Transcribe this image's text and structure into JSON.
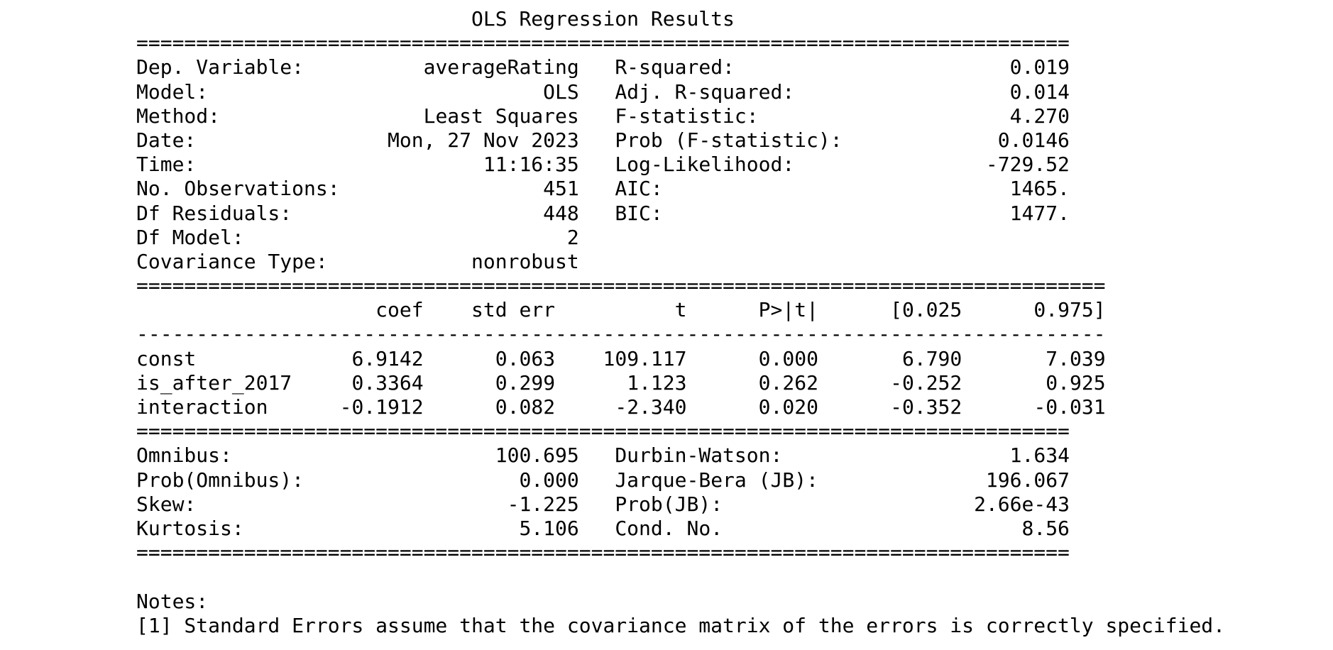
{
  "title": "OLS Regression Results",
  "separators": {
    "top": "==============================================================================",
    "coef_top": "=================================================================================",
    "coef_mid": "---------------------------------------------------------------------------------",
    "coef_bottom": "==============================================================================",
    "end": "=============================================================================="
  },
  "summary": {
    "left": [
      {
        "label": "Dep. Variable:",
        "value": "averageRating"
      },
      {
        "label": "Model:",
        "value": "OLS"
      },
      {
        "label": "Method:",
        "value": "Least Squares"
      },
      {
        "label": "Date:",
        "value": "Mon, 27 Nov 2023"
      },
      {
        "label": "Time:",
        "value": "11:16:35"
      },
      {
        "label": "No. Observations:",
        "value": "451"
      },
      {
        "label": "Df Residuals:",
        "value": "448"
      },
      {
        "label": "Df Model:",
        "value": "2"
      },
      {
        "label": "Covariance Type:",
        "value": "nonrobust"
      }
    ],
    "right": [
      {
        "label": "R-squared:",
        "value": "0.019"
      },
      {
        "label": "Adj. R-squared:",
        "value": "0.014"
      },
      {
        "label": "F-statistic:",
        "value": "4.270"
      },
      {
        "label": "Prob (F-statistic):",
        "value": "0.0146"
      },
      {
        "label": "Log-Likelihood:",
        "value": "-729.52"
      },
      {
        "label": "AIC:",
        "value": "1465."
      },
      {
        "label": "BIC:",
        "value": "1477."
      }
    ]
  },
  "coefficients": {
    "headers": [
      "coef",
      "std err",
      "t",
      "P>|t|",
      "[0.025",
      "0.975]"
    ],
    "rows": [
      {
        "name": "const",
        "values": [
          "6.9142",
          "0.063",
          "109.117",
          "0.000",
          "6.790",
          "7.039"
        ]
      },
      {
        "name": "is_after_2017",
        "values": [
          "0.3364",
          "0.299",
          "1.123",
          "0.262",
          "-0.252",
          "0.925"
        ]
      },
      {
        "name": "interaction",
        "values": [
          "-0.1912",
          "0.082",
          "-2.340",
          "0.020",
          "-0.352",
          "-0.031"
        ]
      }
    ]
  },
  "diagnostics": {
    "left": [
      {
        "label": "Omnibus:",
        "value": "100.695"
      },
      {
        "label": "Prob(Omnibus):",
        "value": "0.000"
      },
      {
        "label": "Skew:",
        "value": "-1.225"
      },
      {
        "label": "Kurtosis:",
        "value": "5.106"
      }
    ],
    "right": [
      {
        "label": "Durbin-Watson:",
        "value": "1.634"
      },
      {
        "label": "Jarque-Bera (JB):",
        "value": "196.067"
      },
      {
        "label": "Prob(JB):",
        "value": "2.66e-43"
      },
      {
        "label": "Cond. No.",
        "value": "8.56"
      }
    ]
  },
  "notes": {
    "heading": "Notes:",
    "items": [
      "[1] Standard Errors assume that the covariance matrix of the errors is correctly specified."
    ]
  }
}
